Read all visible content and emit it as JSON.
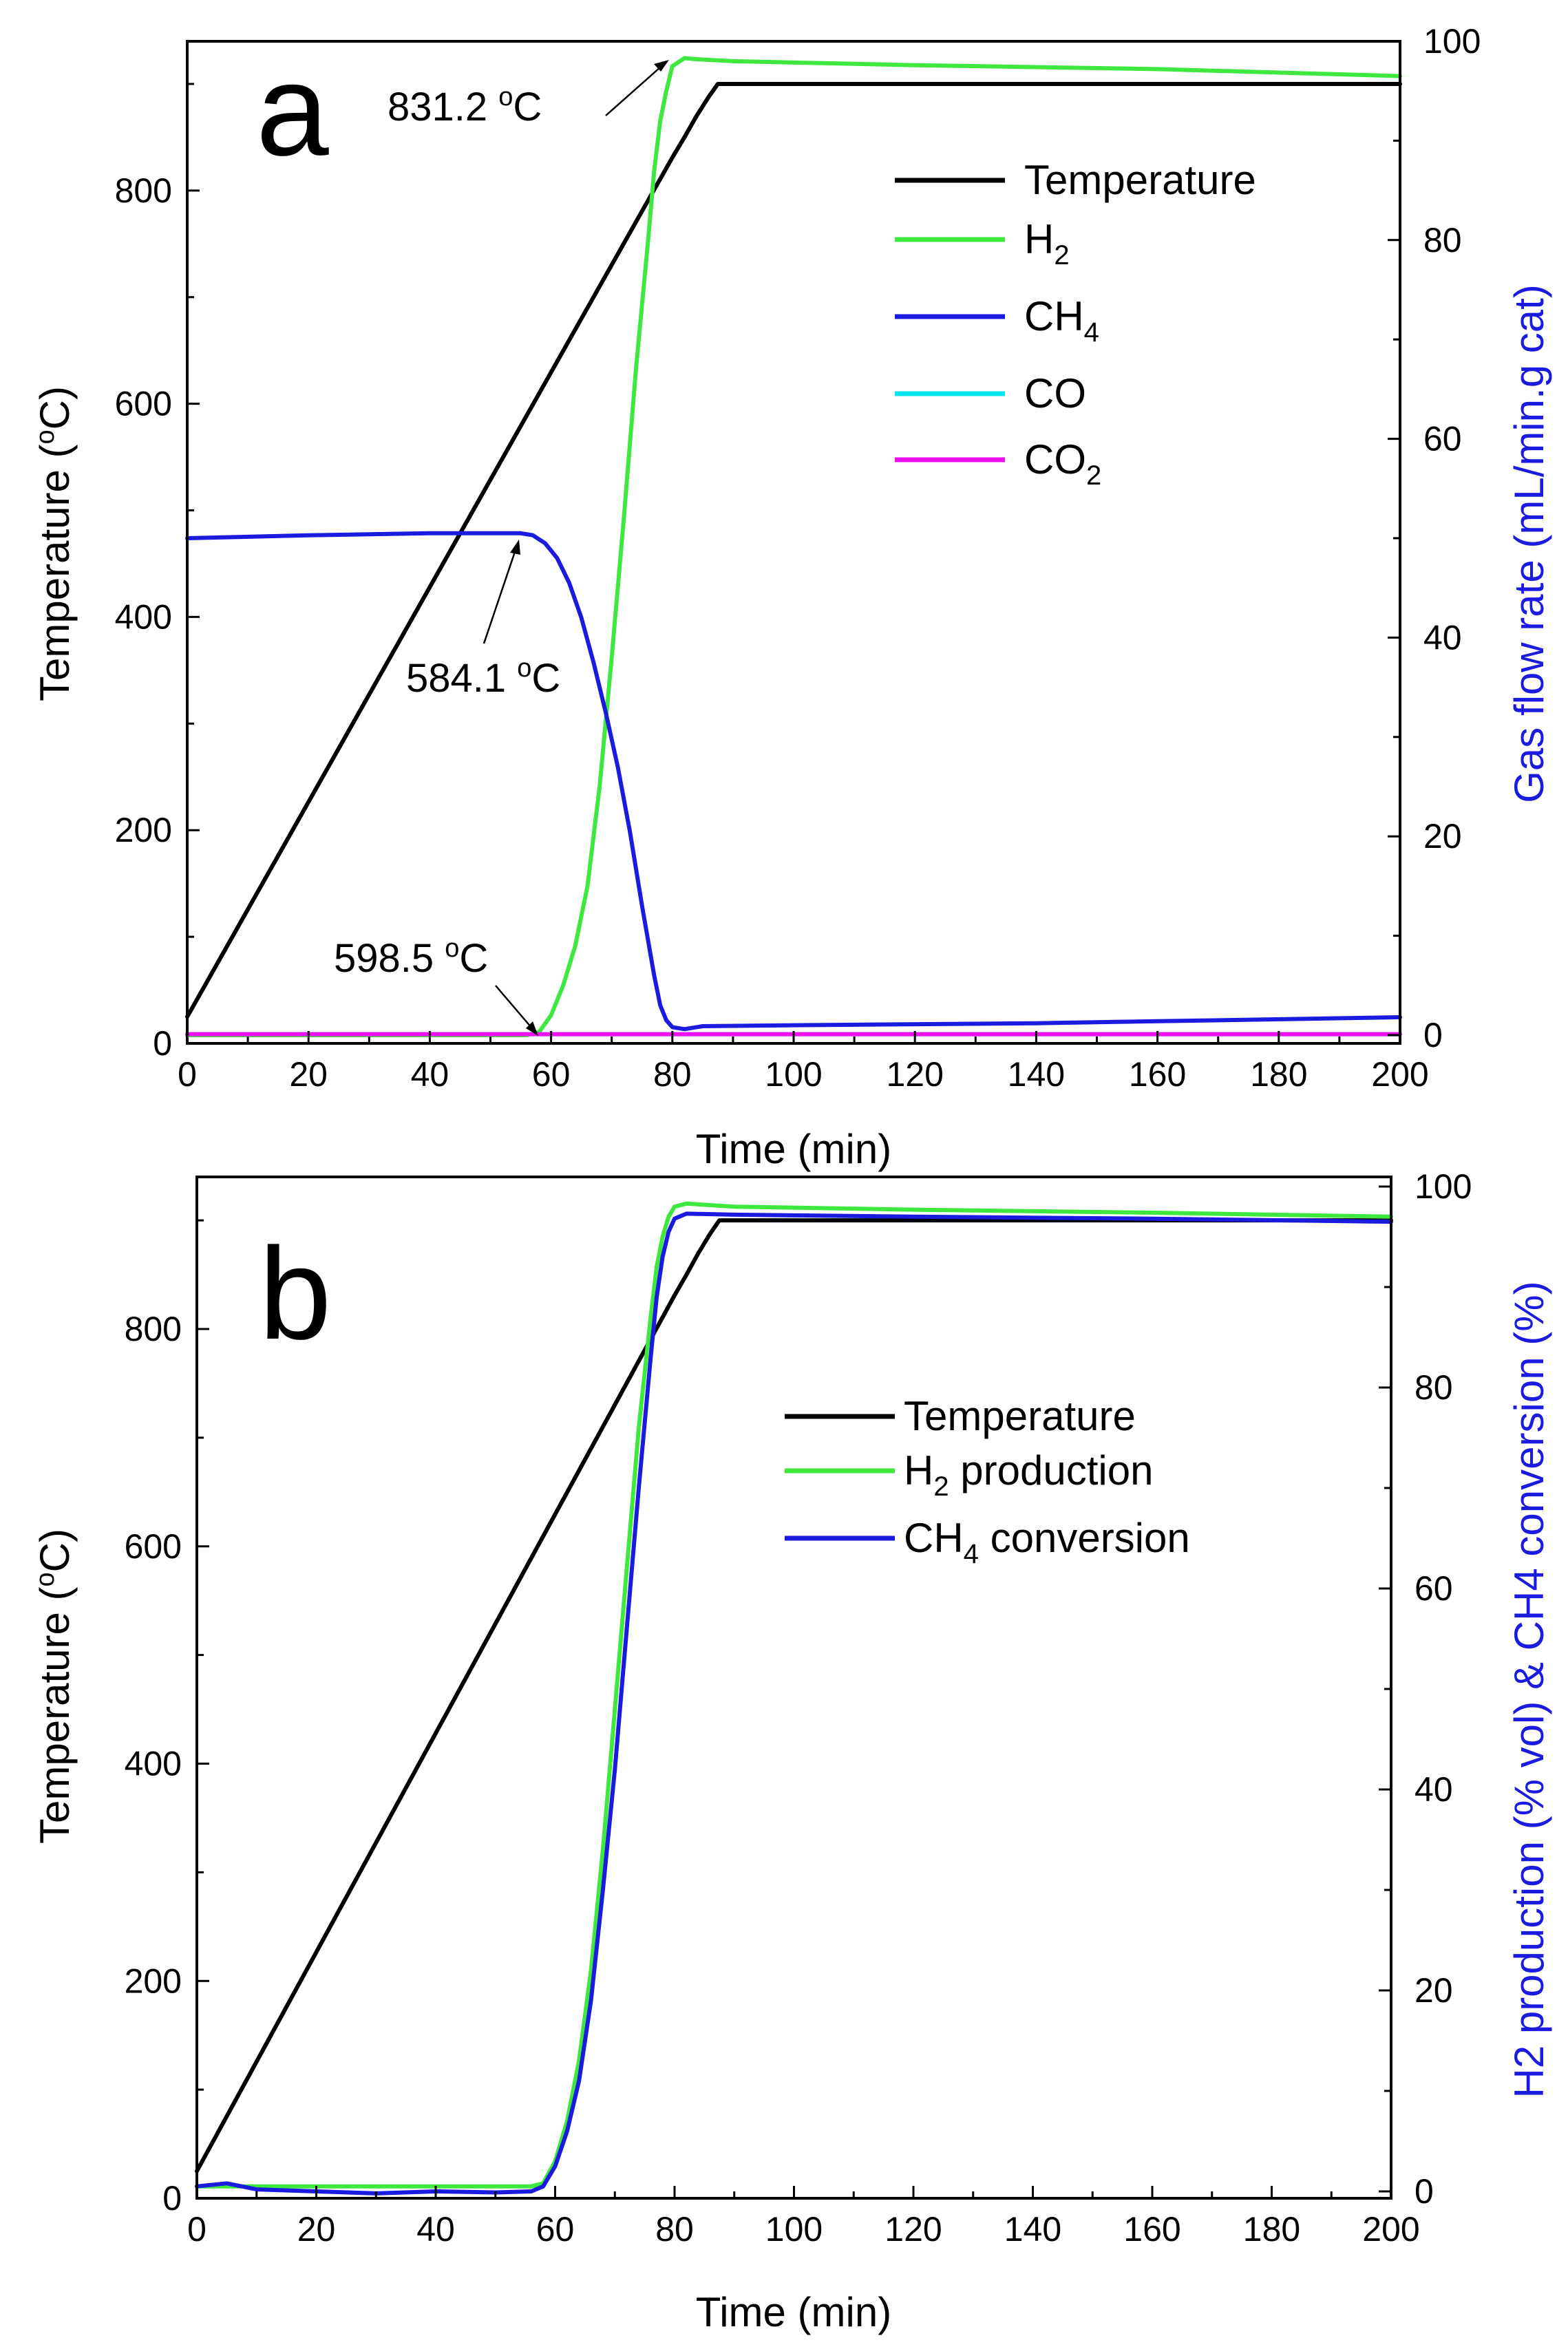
{
  "chart_data": [
    {
      "type": "line",
      "panel_label": "a",
      "xlabel": "Time (min)",
      "ylabel_left": "Temperature (oC)",
      "ylabel_right": "Gas flow rate (mL/min.g cat)",
      "xlim": [
        0,
        200
      ],
      "ylim_left": [
        0,
        940
      ],
      "ylim_right": [
        0,
        100
      ],
      "xticks": [
        "0",
        "20",
        "40",
        "60",
        "80",
        "100",
        "120",
        "140",
        "160",
        "180",
        "200"
      ],
      "yticks_left": [
        "0",
        "200",
        "400",
        "600",
        "800"
      ],
      "yticks_right": [
        "0",
        "20",
        "40",
        "60",
        "80",
        "100"
      ],
      "legend_position": "top-right",
      "series": [
        {
          "name": "Temperature",
          "axis": "left",
          "color": "#000000",
          "x": [
            0,
            80,
            82,
            84,
            86,
            87.5,
            200
          ],
          "y": [
            25,
            831,
            850,
            870,
            888,
            900,
            900
          ]
        },
        {
          "name": "H2",
          "axis": "right",
          "color": "#3ee83e",
          "x": [
            0,
            56,
            58,
            60,
            62,
            64,
            66,
            68,
            70,
            72,
            74,
            76,
            77,
            78,
            79,
            80,
            82,
            84,
            90,
            120,
            160,
            200
          ],
          "y": [
            0,
            0,
            0.3,
            2,
            5,
            9,
            15,
            25,
            38,
            52,
            67,
            80,
            87,
            92,
            95,
            97.5,
            98.3,
            98.2,
            98,
            97.6,
            97.2,
            96.5
          ]
        },
        {
          "name": "CH4",
          "axis": "right",
          "color": "#1b1be0",
          "x": [
            0,
            20,
            40,
            55,
            57,
            59,
            61,
            63,
            65,
            67,
            69,
            71,
            73,
            75,
            77,
            78,
            79,
            80,
            82,
            85,
            100,
            140,
            200
          ],
          "y": [
            50,
            50.3,
            50.5,
            50.5,
            50.3,
            49.5,
            48,
            45.5,
            42,
            37.5,
            32.5,
            27,
            20.5,
            13,
            6,
            3,
            1.5,
            0.8,
            0.6,
            0.9,
            1.0,
            1.2,
            1.8
          ]
        },
        {
          "name": "CO",
          "axis": "right",
          "color": "#00e6ee",
          "x": [
            0,
            200
          ],
          "y": [
            0.1,
            0.1
          ]
        },
        {
          "name": "CO2",
          "axis": "right",
          "color": "#ee10ee",
          "x": [
            0,
            200
          ],
          "y": [
            0.1,
            0.1
          ]
        }
      ],
      "annotations": [
        {
          "text": "831.2 oC",
          "value": "831.2",
          "unit": "oC"
        },
        {
          "text": "584.1 oC",
          "value": "584.1",
          "unit": "oC"
        },
        {
          "text": "598.5 oC",
          "value": "598.5",
          "unit": "oC"
        }
      ]
    },
    {
      "type": "line",
      "panel_label": "b",
      "xlabel": "Time (min)",
      "ylabel_left": "Temperature (oC)",
      "ylabel_right": "H2 production (% vol) & CH4 conversion (%)",
      "xlim": [
        0,
        200
      ],
      "ylim_left": [
        0,
        940
      ],
      "ylim_right": [
        0,
        100
      ],
      "xticks": [
        "0",
        "20",
        "40",
        "60",
        "80",
        "100",
        "120",
        "140",
        "160",
        "180",
        "200"
      ],
      "yticks_left": [
        "0",
        "200",
        "400",
        "600",
        "800"
      ],
      "yticks_right": [
        "0",
        "20",
        "40",
        "60",
        "80",
        "100"
      ],
      "legend_position": "center-right",
      "series": [
        {
          "name": "Temperature",
          "axis": "left",
          "color": "#000000",
          "x": [
            0,
            80,
            82,
            84,
            86,
            87.5,
            200
          ],
          "y": [
            25,
            831,
            850,
            870,
            888,
            900,
            900
          ]
        },
        {
          "name": "H2 production",
          "axis": "right",
          "color": "#3ee83e",
          "x": [
            0,
            56,
            58,
            60,
            62,
            64,
            66,
            68,
            70,
            72,
            74,
            76,
            77,
            78,
            79,
            80,
            82,
            90,
            120,
            160,
            200
          ],
          "y": [
            0.5,
            0.5,
            0.8,
            3,
            7,
            13,
            22,
            34,
            48,
            62,
            76,
            87,
            92,
            95,
            97,
            98,
            98.3,
            98,
            97.7,
            97.4,
            97
          ]
        },
        {
          "name": "CH4 conversion",
          "axis": "right",
          "color": "#1b1be0",
          "x": [
            0,
            5,
            10,
            20,
            30,
            40,
            50,
            56,
            58,
            60,
            62,
            64,
            66,
            68,
            70,
            72,
            74,
            76,
            77,
            78,
            79,
            80,
            82,
            90,
            120,
            160,
            200
          ],
          "y": [
            0.5,
            0.8,
            0.2,
            0,
            -0.2,
            0,
            -0.1,
            0,
            0.5,
            2.5,
            6,
            11,
            19,
            30,
            42,
            56,
            70,
            83,
            89,
            93,
            95.5,
            96.8,
            97.3,
            97.2,
            97,
            96.8,
            96.5
          ]
        }
      ]
    }
  ]
}
